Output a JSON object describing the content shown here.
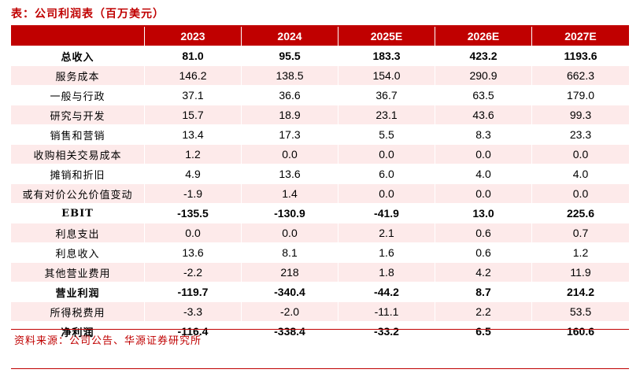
{
  "title": "表：公司利润表（百万美元）",
  "header": [
    "",
    "2023",
    "2024",
    "2025E",
    "2026E",
    "2027E"
  ],
  "rows": [
    {
      "label": "总收入",
      "bold": true,
      "values": [
        "81.0",
        "95.5",
        "183.3",
        "423.2",
        "1193.6"
      ]
    },
    {
      "label": "服务成本",
      "bold": false,
      "values": [
        "146.2",
        "138.5",
        "154.0",
        "290.9",
        "662.3"
      ]
    },
    {
      "label": "一般与行政",
      "bold": false,
      "values": [
        "37.1",
        "36.6",
        "36.7",
        "63.5",
        "179.0"
      ]
    },
    {
      "label": "研究与开发",
      "bold": false,
      "values": [
        "15.7",
        "18.9",
        "23.1",
        "43.6",
        "99.3"
      ]
    },
    {
      "label": "销售和营销",
      "bold": false,
      "values": [
        "13.4",
        "17.3",
        "5.5",
        "8.3",
        "23.3"
      ]
    },
    {
      "label": "收购相关交易成本",
      "bold": false,
      "values": [
        "1.2",
        "0.0",
        "0.0",
        "0.0",
        "0.0"
      ]
    },
    {
      "label": "摊销和折旧",
      "bold": false,
      "values": [
        "4.9",
        "13.6",
        "6.0",
        "4.0",
        "4.0"
      ]
    },
    {
      "label": "或有对价公允价值变动",
      "bold": false,
      "values": [
        "-1.9",
        "1.4",
        "0.0",
        "0.0",
        "0.0"
      ]
    },
    {
      "label": "EBIT",
      "bold": true,
      "values": [
        "-135.5",
        "-130.9",
        "-41.9",
        "13.0",
        "225.6"
      ]
    },
    {
      "label": "利息支出",
      "bold": false,
      "values": [
        "0.0",
        "0.0",
        "2.1",
        "0.6",
        "0.7"
      ]
    },
    {
      "label": "利息收入",
      "bold": false,
      "values": [
        "13.6",
        "8.1",
        "1.6",
        "0.6",
        "1.2"
      ]
    },
    {
      "label": "其他营业费用",
      "bold": false,
      "values": [
        "-2.2",
        "218",
        "1.8",
        "4.2",
        "11.9"
      ]
    },
    {
      "label": "营业利润",
      "bold": true,
      "values": [
        "-119.7",
        "-340.4",
        "-44.2",
        "8.7",
        "214.2"
      ]
    },
    {
      "label": "所得税费用",
      "bold": false,
      "values": [
        "-3.3",
        "-2.0",
        "-11.1",
        "2.2",
        "53.5"
      ]
    },
    {
      "label": "净利润",
      "bold": true,
      "values": [
        "-116.4",
        "-338.4",
        "-33.2",
        "6.5",
        "160.6"
      ]
    }
  ],
  "source": "资料来源：公司公告、华源证券研究所"
}
